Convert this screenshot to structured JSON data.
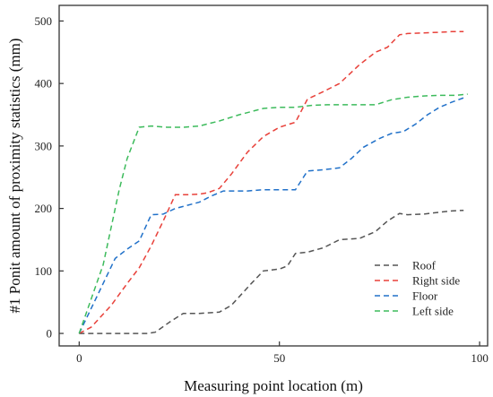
{
  "chart_data": {
    "type": "line",
    "title": "",
    "xlabel": "Measuring point location (m)",
    "ylabel": "#1 Ponit amount of proximity statistics (mm)",
    "xlim": [
      -5,
      102
    ],
    "ylim": [
      -20,
      525
    ],
    "xticks": [
      0,
      50,
      100
    ],
    "yticks": [
      0,
      100,
      200,
      300,
      400,
      500
    ],
    "grid": false,
    "legend_position": "bottom-right",
    "line_style": "dashed",
    "series": [
      {
        "name": "Roof",
        "color": "#555555",
        "x": [
          0,
          6,
          12,
          17,
          19,
          23,
          26,
          30,
          35,
          38,
          43,
          46,
          50,
          52,
          54,
          57,
          61,
          65,
          70,
          74,
          77,
          80,
          82,
          86,
          90,
          93,
          96
        ],
        "y": [
          0,
          0,
          0,
          0,
          2,
          20,
          32,
          32,
          34,
          45,
          80,
          100,
          103,
          108,
          128,
          130,
          137,
          150,
          152,
          163,
          180,
          192,
          190,
          191,
          194,
          196,
          197
        ]
      },
      {
        "name": "Right side",
        "color": "#e8413a",
        "x": [
          0,
          3,
          8,
          12,
          15,
          18,
          21,
          24,
          27,
          30,
          32,
          35,
          38,
          42,
          46,
          50,
          54,
          57,
          61,
          65,
          70,
          74,
          77,
          80,
          82,
          86,
          90,
          93,
          96
        ],
        "y": [
          0,
          10,
          45,
          80,
          105,
          140,
          180,
          222,
          222,
          223,
          225,
          232,
          255,
          290,
          315,
          330,
          338,
          375,
          387,
          400,
          430,
          450,
          458,
          478,
          480,
          481,
          482,
          483,
          483
        ]
      },
      {
        "name": "Floor",
        "color": "#2171c9",
        "x": [
          0,
          3,
          6,
          9,
          12,
          15,
          18,
          21,
          24,
          27,
          30,
          33,
          36,
          39,
          42,
          46,
          50,
          54,
          57,
          61,
          65,
          68,
          71,
          75,
          78,
          81,
          84,
          87,
          90,
          93,
          96
        ],
        "y": [
          0,
          40,
          80,
          120,
          135,
          148,
          190,
          191,
          200,
          205,
          210,
          220,
          228,
          228,
          228,
          230,
          230,
          230,
          260,
          262,
          265,
          280,
          298,
          312,
          320,
          323,
          335,
          350,
          362,
          370,
          377
        ]
      },
      {
        "name": "Left side",
        "color": "#3dbb5c",
        "x": [
          0,
          3,
          6,
          10,
          12,
          15,
          18,
          22,
          26,
          30,
          35,
          40,
          46,
          50,
          54,
          58,
          62,
          66,
          70,
          74,
          78,
          82,
          86,
          90,
          94,
          97
        ],
        "y": [
          0,
          55,
          110,
          230,
          280,
          330,
          332,
          330,
          330,
          332,
          340,
          350,
          360,
          362,
          362,
          365,
          366,
          366,
          366,
          366,
          374,
          378,
          380,
          381,
          381,
          383
        ]
      }
    ]
  }
}
